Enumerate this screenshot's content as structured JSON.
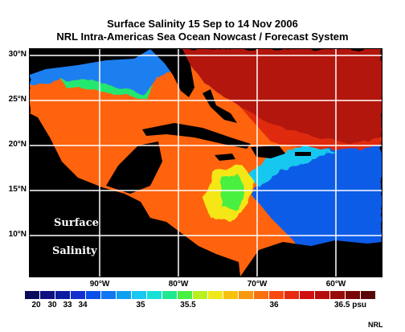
{
  "title": {
    "line1": "Surface Salinity 15 Sep to 14 Nov 2006",
    "line2": "NRL Intra-Americas Sea Ocean Nowcast / Forecast System"
  },
  "map": {
    "overlay_label_1": "Surface",
    "overlay_label_2": "Salinity",
    "lat_labels": [
      "30°N",
      "25°N",
      "20°N",
      "15°N",
      "10°N"
    ],
    "lon_labels": [
      "90°W",
      "80°W",
      "70°W",
      "60°W"
    ],
    "colors": {
      "land": "#000000",
      "grid": "#ffffff",
      "high_salinity_atlantic": "#b3140c",
      "carib_orange": "#ff6410",
      "low_salinity_blue": "#0b5be8",
      "plume_yellow": "#f5e619"
    }
  },
  "colorbar": {
    "unit": "psu",
    "colors": [
      "#0a0a5c",
      "#101080",
      "#0a1ca0",
      "#1030d0",
      "#0a50e8",
      "#1078f0",
      "#10a0f0",
      "#18c8f0",
      "#18e0d8",
      "#20e890",
      "#48f040",
      "#b8f020",
      "#f0e818",
      "#f8c010",
      "#f89810",
      "#f87010",
      "#f84a10",
      "#e82a10",
      "#d01010",
      "#b80c0c",
      "#980a0a",
      "#780808",
      "#580606"
    ],
    "tick_labels": [
      "20",
      "30",
      "33",
      "34",
      "35",
      "35.5",
      "36",
      "36.5 psu"
    ]
  },
  "credit": "NRL"
}
